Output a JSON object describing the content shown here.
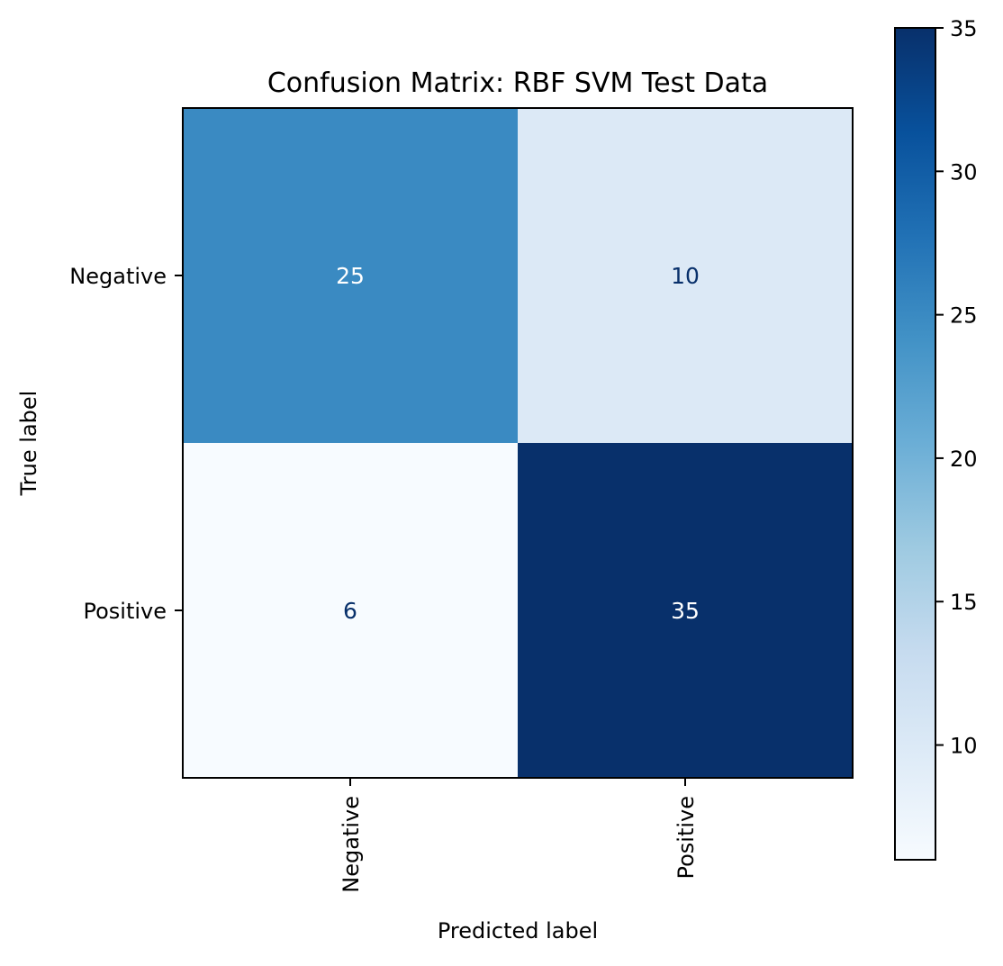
{
  "chart_data": {
    "type": "heatmap",
    "title": "Confusion Matrix: RBF SVM Test Data",
    "xlabel": "Predicted label",
    "ylabel": "True label",
    "x_categories": [
      "Negative",
      "Positive"
    ],
    "y_categories": [
      "Negative",
      "Positive"
    ],
    "values": [
      [
        25,
        10
      ],
      [
        6,
        35
      ]
    ],
    "colormap": "Blues",
    "color_range": [
      6,
      35
    ],
    "colorbar_ticks": [
      10,
      15,
      20,
      25,
      30,
      35
    ],
    "low_text_color": "#08306b",
    "high_text_color": "#ffffff",
    "grid": false,
    "colorbar": "right"
  }
}
